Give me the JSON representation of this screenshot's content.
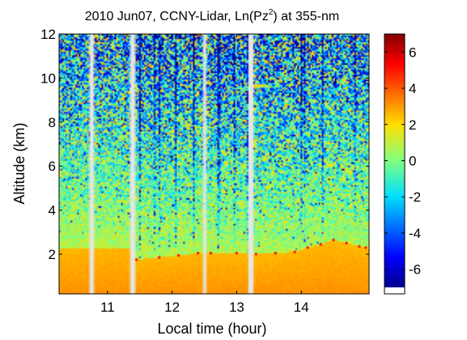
{
  "chart_data": {
    "type": "heatmap",
    "title_main": "2010 Jun07, CCNY-Lidar, Ln(Pz",
    "title_sup": "2",
    "title_tail": ") at 355-nm",
    "xlabel": "Local time (hour)",
    "ylabel": "Altitude (km)",
    "xlim": [
      10.25,
      15.05
    ],
    "ylim": [
      0.2,
      12
    ],
    "xticks": [
      11,
      12,
      13,
      14
    ],
    "yticks": [
      2,
      4,
      6,
      8,
      10,
      12
    ],
    "clim": [
      -7,
      7
    ],
    "colorbar_ticks": [
      6,
      4,
      2,
      0,
      -2,
      -4,
      -6
    ],
    "data_gaps_hours": [
      [
        10.72,
        10.79
      ],
      [
        11.35,
        11.43
      ],
      [
        12.48,
        12.53
      ],
      [
        13.18,
        13.26
      ]
    ],
    "boundary_layer_top_km": [
      {
        "x": 11.45,
        "y": 1.75
      },
      {
        "x": 11.8,
        "y": 1.85
      },
      {
        "x": 12.1,
        "y": 1.95
      },
      {
        "x": 12.4,
        "y": 2.05
      },
      {
        "x": 12.6,
        "y": 2.05
      },
      {
        "x": 13.0,
        "y": 2.05
      },
      {
        "x": 13.3,
        "y": 2.0
      },
      {
        "x": 13.6,
        "y": 2.05
      },
      {
        "x": 13.9,
        "y": 2.1
      },
      {
        "x": 14.1,
        "y": 2.3
      },
      {
        "x": 14.3,
        "y": 2.45
      },
      {
        "x": 14.5,
        "y": 2.65
      },
      {
        "x": 14.7,
        "y": 2.5
      },
      {
        "x": 14.9,
        "y": 2.35
      },
      {
        "x": 15.0,
        "y": 2.3
      }
    ],
    "colors": {
      "high": "#800000",
      "mid_high": "#ff3000",
      "mid": "#ffd000",
      "zero": "#b8e070",
      "mid_low": "#30e0e0",
      "low": "#0040ff",
      "very_low": "#000090",
      "gap": "#e6e6e6"
    }
  }
}
